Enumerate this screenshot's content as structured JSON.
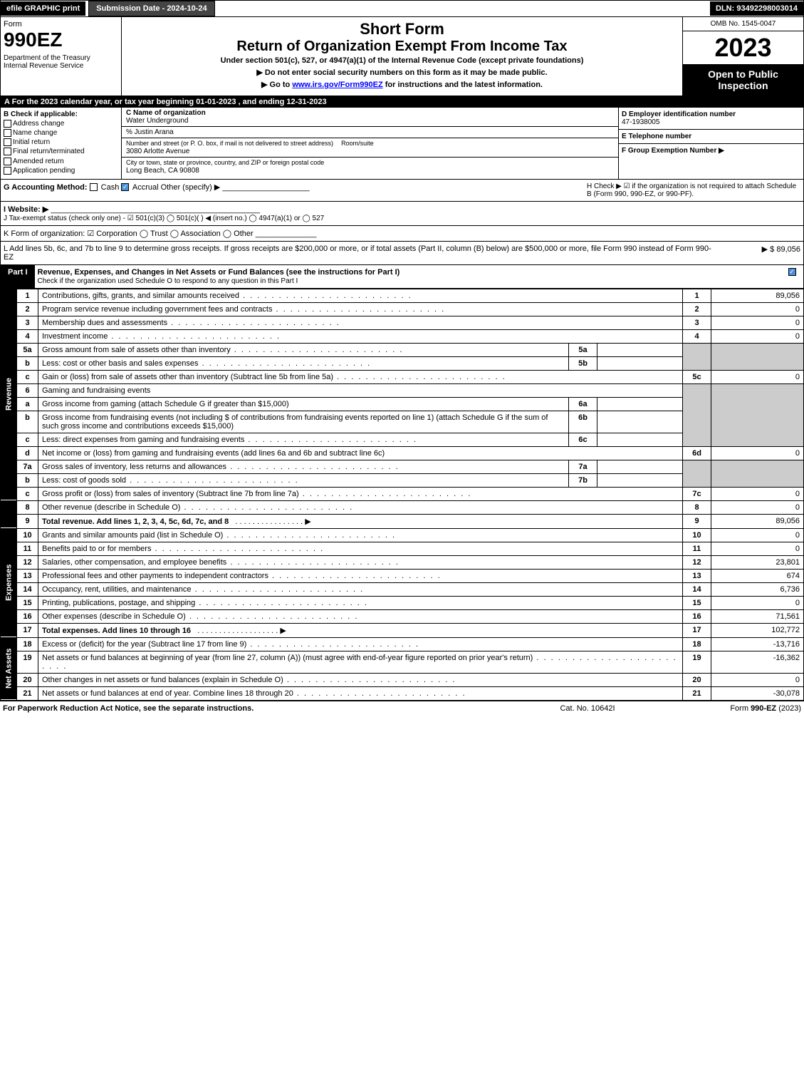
{
  "topbar": {
    "efile": "efile GRAPHIC print",
    "subdate": "Submission Date - 2024-10-24",
    "dln": "DLN: 93492298003014"
  },
  "header": {
    "form": "Form",
    "formnum": "990EZ",
    "dept": "Department of the Treasury\nInternal Revenue Service",
    "short": "Short Form",
    "ret": "Return of Organization Exempt From Income Tax",
    "under": "Under section 501(c), 527, or 4947(a)(1) of the Internal Revenue Code (except private foundations)",
    "note1": "▶ Do not enter social security numbers on this form as it may be made public.",
    "note2_pre": "▶ Go to ",
    "note2_link": "www.irs.gov/Form990EZ",
    "note2_post": " for instructions and the latest information.",
    "omb": "OMB No. 1545-0047",
    "year": "2023",
    "open": "Open to Public Inspection"
  },
  "sectionA": "A  For the 2023 calendar year, or tax year beginning 01-01-2023 , and ending 12-31-2023",
  "B": {
    "hdr": "B  Check if applicable:",
    "items": [
      "Address change",
      "Name change",
      "Initial return",
      "Final return/terminated",
      "Amended return",
      "Application pending"
    ]
  },
  "C": {
    "name_lbl": "C Name of organization",
    "name": "Water Underground",
    "care": "% Justin Arana",
    "street_lbl": "Number and street (or P. O. box, if mail is not delivered to street address)",
    "room_lbl": "Room/suite",
    "street": "3080 Arlotte Avenue",
    "city_lbl": "City or town, state or province, country, and ZIP or foreign postal code",
    "city": "Long Beach, CA  90808"
  },
  "D": {
    "lbl": "D Employer identification number",
    "val": "47-1938005"
  },
  "E": {
    "lbl": "E Telephone number",
    "val": ""
  },
  "F": {
    "lbl": "F Group Exemption Number  ▶",
    "val": ""
  },
  "G": {
    "lbl": "G Accounting Method:",
    "cash": "Cash",
    "accrual": "Accrual",
    "other": "Other (specify) ▶"
  },
  "H": {
    "txt": "H  Check ▶ ☑ if the organization is not required to attach Schedule B (Form 990, 990-EZ, or 990-PF)."
  },
  "I": {
    "lbl": "I Website: ▶"
  },
  "J": {
    "txt": "J Tax-exempt status (check only one) - ☑ 501(c)(3)  ◯ 501(c)(  ) ◀ (insert no.)  ◯ 4947(a)(1) or  ◯ 527"
  },
  "K": {
    "txt": "K Form of organization:  ☑ Corporation  ◯ Trust  ◯ Association  ◯ Other"
  },
  "L": {
    "txt": "L Add lines 5b, 6c, and 7b to line 9 to determine gross receipts. If gross receipts are $200,000 or more, or if total assets (Part II, column (B) below) are $500,000 or more, file Form 990 instead of Form 990-EZ",
    "val": "▶ $ 89,056"
  },
  "part1": {
    "lbl": "Part I",
    "desc": "Revenue, Expenses, and Changes in Net Assets or Fund Balances (see the instructions for Part I)",
    "check": "Check if the organization used Schedule O to respond to any question in this Part I"
  },
  "sections": {
    "revenue": "Revenue",
    "expenses": "Expenses",
    "netassets": "Net Assets"
  },
  "lines": {
    "l1": {
      "n": "1",
      "d": "Contributions, gifts, grants, and similar amounts received",
      "r": "1",
      "v": "89,056"
    },
    "l2": {
      "n": "2",
      "d": "Program service revenue including government fees and contracts",
      "r": "2",
      "v": "0"
    },
    "l3": {
      "n": "3",
      "d": "Membership dues and assessments",
      "r": "3",
      "v": "0"
    },
    "l4": {
      "n": "4",
      "d": "Investment income",
      "r": "4",
      "v": "0"
    },
    "l5a": {
      "n": "5a",
      "d": "Gross amount from sale of assets other than inventory",
      "m": "5a",
      "mv": ""
    },
    "l5b": {
      "n": "b",
      "d": "Less: cost or other basis and sales expenses",
      "m": "5b",
      "mv": ""
    },
    "l5c": {
      "n": "c",
      "d": "Gain or (loss) from sale of assets other than inventory (Subtract line 5b from line 5a)",
      "r": "5c",
      "v": "0"
    },
    "l6": {
      "n": "6",
      "d": "Gaming and fundraising events"
    },
    "l6a": {
      "n": "a",
      "d": "Gross income from gaming (attach Schedule G if greater than $15,000)",
      "m": "6a",
      "mv": ""
    },
    "l6b": {
      "n": "b",
      "d": "Gross income from fundraising events (not including $            of contributions from fundraising events reported on line 1) (attach Schedule G if the sum of such gross income and contributions exceeds $15,000)",
      "m": "6b",
      "mv": ""
    },
    "l6c": {
      "n": "c",
      "d": "Less: direct expenses from gaming and fundraising events",
      "m": "6c",
      "mv": ""
    },
    "l6d": {
      "n": "d",
      "d": "Net income or (loss) from gaming and fundraising events (add lines 6a and 6b and subtract line 6c)",
      "r": "6d",
      "v": "0"
    },
    "l7a": {
      "n": "7a",
      "d": "Gross sales of inventory, less returns and allowances",
      "m": "7a",
      "mv": ""
    },
    "l7b": {
      "n": "b",
      "d": "Less: cost of goods sold",
      "m": "7b",
      "mv": ""
    },
    "l7c": {
      "n": "c",
      "d": "Gross profit or (loss) from sales of inventory (Subtract line 7b from line 7a)",
      "r": "7c",
      "v": "0"
    },
    "l8": {
      "n": "8",
      "d": "Other revenue (describe in Schedule O)",
      "r": "8",
      "v": "0"
    },
    "l9": {
      "n": "9",
      "d": "Total revenue. Add lines 1, 2, 3, 4, 5c, 6d, 7c, and 8",
      "r": "9",
      "v": "89,056"
    },
    "l10": {
      "n": "10",
      "d": "Grants and similar amounts paid (list in Schedule O)",
      "r": "10",
      "v": "0"
    },
    "l11": {
      "n": "11",
      "d": "Benefits paid to or for members",
      "r": "11",
      "v": "0"
    },
    "l12": {
      "n": "12",
      "d": "Salaries, other compensation, and employee benefits",
      "r": "12",
      "v": "23,801"
    },
    "l13": {
      "n": "13",
      "d": "Professional fees and other payments to independent contractors",
      "r": "13",
      "v": "674"
    },
    "l14": {
      "n": "14",
      "d": "Occupancy, rent, utilities, and maintenance",
      "r": "14",
      "v": "6,736"
    },
    "l15": {
      "n": "15",
      "d": "Printing, publications, postage, and shipping",
      "r": "15",
      "v": "0"
    },
    "l16": {
      "n": "16",
      "d": "Other expenses (describe in Schedule O)",
      "r": "16",
      "v": "71,561"
    },
    "l17": {
      "n": "17",
      "d": "Total expenses. Add lines 10 through 16",
      "r": "17",
      "v": "102,772"
    },
    "l18": {
      "n": "18",
      "d": "Excess or (deficit) for the year (Subtract line 17 from line 9)",
      "r": "18",
      "v": "-13,716"
    },
    "l19": {
      "n": "19",
      "d": "Net assets or fund balances at beginning of year (from line 27, column (A)) (must agree with end-of-year figure reported on prior year's return)",
      "r": "19",
      "v": "-16,362"
    },
    "l20": {
      "n": "20",
      "d": "Other changes in net assets or fund balances (explain in Schedule O)",
      "r": "20",
      "v": "0"
    },
    "l21": {
      "n": "21",
      "d": "Net assets or fund balances at end of year. Combine lines 18 through 20",
      "r": "21",
      "v": "-30,078"
    }
  },
  "footer": {
    "l": "For Paperwork Reduction Act Notice, see the separate instructions.",
    "m": "Cat. No. 10642I",
    "r": "Form 990-EZ (2023)"
  },
  "colors": {
    "black": "#000000",
    "white": "#ffffff",
    "shade": "#cccccc",
    "link": "#0000ff",
    "check": "#4a90d9"
  }
}
